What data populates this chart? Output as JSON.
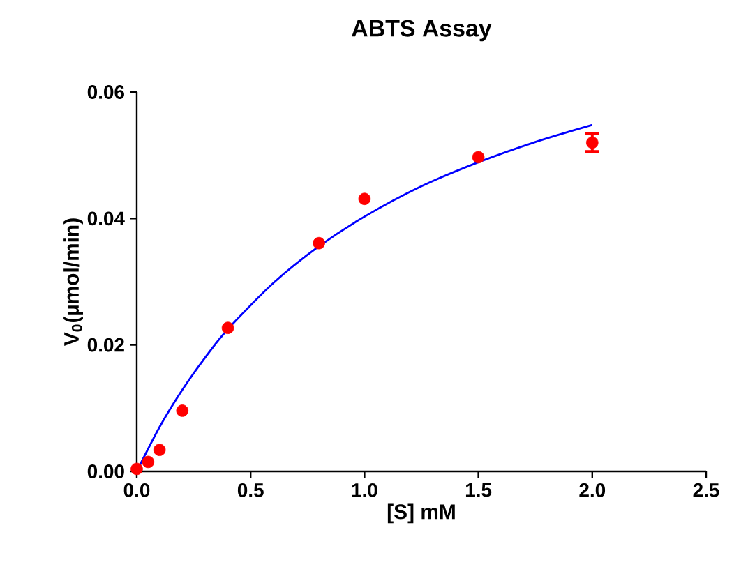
{
  "chart_data": {
    "type": "scatter",
    "title": "ABTS Assay",
    "xlabel": "[S] mM",
    "ylabel": "V$_{0}$(µmol/min)",
    "xlim": [
      0,
      2.5
    ],
    "ylim": [
      0,
      0.06
    ],
    "xticks": [
      {
        "value": 0,
        "label": "0.0"
      },
      0.5,
      {
        "value": 1,
        "label": "1.0"
      },
      1.5,
      {
        "value": 2,
        "label": "2.0"
      },
      2.5
    ],
    "yticks": [
      {
        "value": 0,
        "label": "0.00"
      },
      0.02,
      0.04,
      0.06
    ],
    "grid": false,
    "series": [
      {
        "color": "#ff0000",
        "marker": "circle",
        "x": [
          0,
          0.05,
          0.1,
          0.2,
          0.4,
          0.8,
          1.0,
          1.5,
          2.0
        ],
        "values": [
          0.0004,
          0.0015,
          0.0034,
          0.0096,
          0.0227,
          0.0361,
          0.0431,
          0.0497,
          0.052
        ],
        "errors": [
          null,
          null,
          null,
          null,
          null,
          null,
          null,
          null,
          0.0014
        ]
      },
      {
        "type": "line",
        "color": "#0000ff",
        "marker": "none",
        "line_style": "solid",
        "x": [
          0,
          0.1,
          0.2,
          0.3,
          0.4,
          0.6,
          0.8,
          1.0,
          1.25,
          1.5,
          1.75,
          2.0
        ],
        "values": [
          0,
          0.007,
          0.0129,
          0.018,
          0.0225,
          0.0298,
          0.0356,
          0.0403,
          0.0451,
          0.0489,
          0.0521,
          0.0548
        ]
      }
    ]
  }
}
